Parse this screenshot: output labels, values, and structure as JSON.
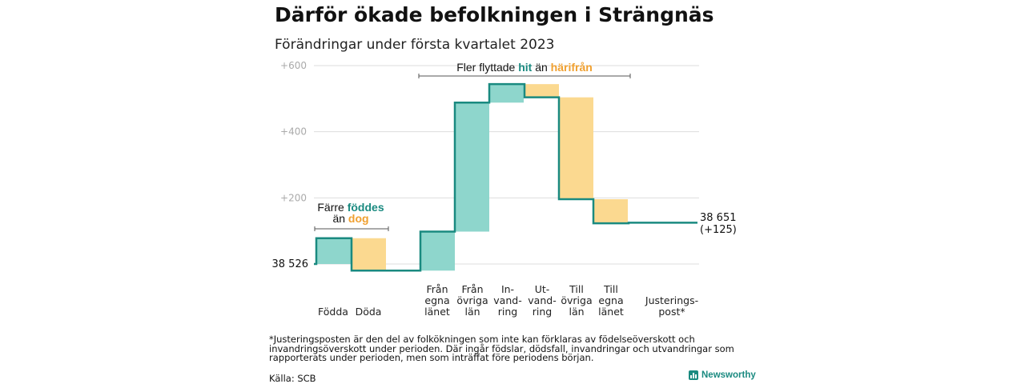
{
  "title": "Därför ökade befolkningen i Strängnäs",
  "subtitle": "Förändringar under första kvartalet 2023",
  "footnote": "*Justeringsposten är den del av folkökningen som inte kan förklaras av födelseöverskott och invandringsöverskott under perioden. Där ingår födslar, dödsfall, invandringar och utvandringar som rapporterats under perioden, men som inträffat före periodens början.",
  "source": "Källa: SCB",
  "brand": "Newsworthy",
  "colors": {
    "increase": "#8ed6cc",
    "decrease": "#fbd990",
    "line": "#1a8a80",
    "teal_text": "#1a8a80",
    "orange_text": "#f0a030",
    "grid": "#dddddd",
    "tick": "#aaaaaa"
  },
  "chart_data": {
    "type": "waterfall",
    "baseline": 38526,
    "y_axis": {
      "ticks": [
        "+600",
        "+400",
        "+200"
      ],
      "tick_values": [
        600,
        400,
        200
      ],
      "range": [
        -20,
        620
      ],
      "grid": true
    },
    "categories": [
      {
        "label": [
          "Födda"
        ],
        "change": 78
      },
      {
        "label": [
          "Döda"
        ],
        "change": -98
      },
      {
        "label": [
          "Från",
          "egna",
          "länet"
        ],
        "change": 118
      },
      {
        "label": [
          "Från",
          "övriga",
          "län"
        ],
        "change": 390
      },
      {
        "label": [
          "In-",
          "vand-",
          "ring"
        ],
        "change": 56
      },
      {
        "label": [
          "Ut-",
          "vand-",
          "ring"
        ],
        "change": -40
      },
      {
        "label": [
          "Till",
          "övriga",
          "län"
        ],
        "change": -308
      },
      {
        "label": [
          "Till",
          "egna",
          "länet"
        ],
        "change": -73
      },
      {
        "label": [
          "Justerings-",
          "post*"
        ],
        "change": 2
      }
    ],
    "start_label": "38 526",
    "end_label": [
      "38 651",
      "(+125)"
    ],
    "annotations": [
      {
        "text_plain_1": "Färre",
        "text_teal": "föddes",
        "text_plain_2": "än",
        "text_orange": "dog",
        "span": [
          "Födda",
          "Döda"
        ]
      },
      {
        "text_plain_1": "Fler flyttade",
        "text_teal": "hit",
        "text_plain_2": "än",
        "text_orange": "härifrån",
        "span": [
          "Från egna länet",
          "Till egna länet"
        ]
      }
    ]
  }
}
